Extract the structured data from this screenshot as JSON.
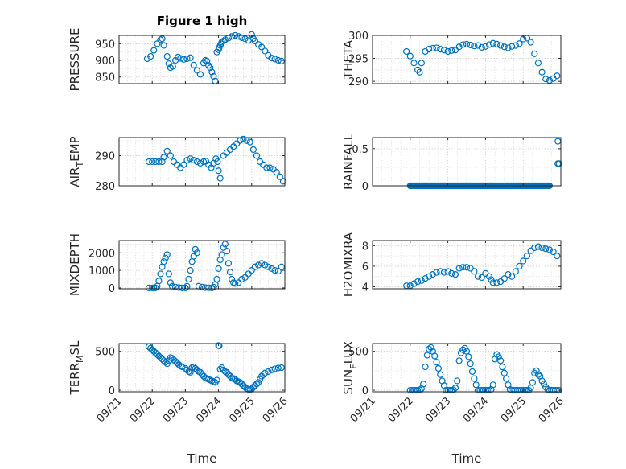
{
  "figure": {
    "background": "#ffffff",
    "marker_color": "#0072BD",
    "axis_color": "#262626",
    "grid_color": "#d0d0d0"
  },
  "chart_data": [
    {
      "type": "scatter",
      "title": "Figure 1 high",
      "ylabel": "PRESSURE",
      "xlabel": "",
      "grid": true,
      "xlim": [
        "09/21",
        "09/26"
      ],
      "ylim": [
        830,
        975
      ],
      "yticks": [
        850,
        900,
        950
      ],
      "xticks": [
        "09/21",
        "09/22",
        "09/23",
        "09/24",
        "09/25",
        "09/26"
      ],
      "show_xticklabels": false,
      "x": [
        1.85,
        1.95,
        2.05,
        2.15,
        2.25,
        2.3,
        2.35,
        2.45,
        2.5,
        2.55,
        2.62,
        2.7,
        2.78,
        2.85,
        2.95,
        3.05,
        3.15,
        3.25,
        3.35,
        3.45,
        3.55,
        3.6,
        3.65,
        3.7,
        3.75,
        3.8,
        3.85,
        3.9,
        3.95,
        4.0,
        4.02,
        4.05,
        4.08,
        4.1,
        4.15,
        4.2,
        4.3,
        4.4,
        4.5,
        4.6,
        4.7,
        4.8,
        4.9,
        5.0,
        5.05,
        5.1,
        5.2,
        5.3,
        5.4,
        5.5,
        5.6,
        5.7,
        5.8,
        5.9
      ],
      "y": [
        905,
        912,
        930,
        950,
        962,
        965,
        945,
        912,
        890,
        878,
        882,
        900,
        910,
        906,
        903,
        905,
        908,
        886,
        870,
        858,
        892,
        900,
        898,
        885,
        878,
        865,
        852,
        838,
        925,
        932,
        938,
        945,
        950,
        955,
        958,
        962,
        967,
        972,
        975,
        972,
        968,
        965,
        960,
        978,
        965,
        958,
        948,
        940,
        928,
        915,
        907,
        904,
        900,
        898
      ]
    },
    {
      "type": "scatter",
      "ylabel": "THETA",
      "xlabel": "",
      "grid": true,
      "xlim": [
        "09/21",
        "09/26"
      ],
      "ylim": [
        289.5,
        300
      ],
      "yticks": [
        290,
        295,
        300
      ],
      "xticks": [
        "09/21",
        "09/22",
        "09/23",
        "09/24",
        "09/25",
        "09/26"
      ],
      "show_xticklabels": false,
      "x": [
        1.9,
        2.0,
        2.1,
        2.2,
        2.25,
        2.3,
        2.4,
        2.5,
        2.6,
        2.7,
        2.8,
        2.9,
        3.0,
        3.1,
        3.2,
        3.3,
        3.4,
        3.5,
        3.6,
        3.7,
        3.8,
        3.9,
        4.0,
        4.1,
        4.2,
        4.3,
        4.4,
        4.5,
        4.6,
        4.7,
        4.8,
        4.9,
        5.0,
        5.1,
        5.2,
        5.3,
        5.4,
        5.5,
        5.6,
        5.7,
        5.8,
        5.9
      ],
      "y": [
        296.5,
        295.5,
        294,
        292.5,
        292,
        294,
        296.5,
        297,
        297.2,
        297.3,
        297,
        296.8,
        296.5,
        296.7,
        296.8,
        297.5,
        298,
        298.1,
        297.9,
        297.7,
        297.8,
        297.4,
        297.6,
        298,
        298.3,
        298.1,
        297.8,
        297.5,
        297.3,
        297.6,
        297.8,
        298.2,
        299.2,
        299.4,
        298.5,
        296,
        294,
        292,
        290.5,
        290.2,
        290.6,
        291.2
      ]
    },
    {
      "type": "scatter",
      "ylabel": "AIR_TEMP",
      "xlabel": "",
      "grid": true,
      "xlim": [
        "09/21",
        "09/26"
      ],
      "ylim": [
        280,
        296
      ],
      "yticks": [
        280,
        290
      ],
      "xticks": [
        "09/21",
        "09/22",
        "09/23",
        "09/24",
        "09/25",
        "09/26"
      ],
      "show_xticklabels": false,
      "x": [
        1.9,
        2.0,
        2.1,
        2.2,
        2.3,
        2.35,
        2.45,
        2.55,
        2.65,
        2.75,
        2.85,
        2.95,
        3.05,
        3.15,
        3.25,
        3.35,
        3.45,
        3.55,
        3.62,
        3.7,
        3.78,
        3.85,
        3.92,
        3.97,
        4.0,
        4.05,
        4.15,
        4.25,
        4.35,
        4.45,
        4.55,
        4.65,
        4.75,
        4.85,
        4.95,
        5.05,
        5.15,
        5.25,
        5.35,
        5.45,
        5.55,
        5.65,
        5.75,
        5.85,
        5.95
      ],
      "y": [
        288,
        288,
        288,
        288,
        288,
        289.5,
        291.5,
        290,
        288,
        287,
        286,
        287,
        288.5,
        289,
        288.5,
        288,
        287.5,
        288,
        288.2,
        287,
        286,
        287.5,
        289,
        288,
        285,
        282.5,
        290,
        291,
        292,
        293,
        294,
        295,
        295.5,
        295,
        294.5,
        292,
        290,
        288,
        287,
        286,
        286,
        285.5,
        284.5,
        283,
        281.5
      ]
    },
    {
      "type": "scatter",
      "ylabel": "RAINFALL",
      "xlabel": "",
      "grid": true,
      "xlim": [
        "09/21",
        "09/26"
      ],
      "ylim": [
        0,
        0.65
      ],
      "yticks": [
        0,
        0.5
      ],
      "xticks": [
        "09/21",
        "09/22",
        "09/23",
        "09/24",
        "09/25",
        "09/26"
      ],
      "show_xticklabels": false,
      "x_range_zero": [
        2.0,
        5.7
      ],
      "x": [
        5.92,
        5.92,
        5.95
      ],
      "y": [
        0.6,
        0.3,
        0.3
      ]
    },
    {
      "type": "scatter",
      "ylabel": "MIXDEPTH",
      "xlabel": "",
      "grid": true,
      "xlim": [
        "09/21",
        "09/26"
      ],
      "ylim": [
        -50,
        2700
      ],
      "yticks": [
        0,
        1000,
        2000
      ],
      "xticks": [
        "09/21",
        "09/22",
        "09/23",
        "09/24",
        "09/25",
        "09/26"
      ],
      "show_xticklabels": false,
      "x": [
        1.9,
        2.0,
        2.05,
        2.1,
        2.15,
        2.2,
        2.25,
        2.3,
        2.35,
        2.4,
        2.45,
        2.5,
        2.55,
        2.6,
        2.7,
        2.8,
        2.9,
        3.0,
        3.05,
        3.1,
        3.15,
        3.2,
        3.25,
        3.3,
        3.35,
        3.4,
        3.5,
        3.6,
        3.7,
        3.8,
        3.85,
        3.9,
        3.95,
        4.0,
        4.05,
        4.1,
        4.15,
        4.2,
        4.25,
        4.3,
        4.35,
        4.4,
        4.45,
        4.5,
        4.6,
        4.7,
        4.8,
        4.9,
        5.0,
        5.1,
        5.2,
        5.3,
        5.4,
        5.5,
        5.6,
        5.7,
        5.8,
        5.9
      ],
      "y": [
        0,
        0,
        0,
        0,
        100,
        400,
        800,
        1200,
        1500,
        1700,
        1900,
        800,
        300,
        100,
        50,
        20,
        0,
        0,
        100,
        500,
        1000,
        1500,
        1800,
        2200,
        2000,
        100,
        50,
        20,
        10,
        0,
        50,
        200,
        500,
        1100,
        1600,
        1900,
        2300,
        2500,
        2100,
        1400,
        900,
        500,
        300,
        250,
        300,
        500,
        600,
        800,
        1000,
        1200,
        1300,
        1400,
        1300,
        1200,
        1100,
        1000,
        950,
        1200
      ]
    },
    {
      "type": "scatter",
      "ylabel": "H2OMIXRA",
      "xlabel": "",
      "grid": true,
      "xlim": [
        "09/21",
        "09/26"
      ],
      "ylim": [
        3.8,
        8.5
      ],
      "yticks": [
        4,
        6,
        8
      ],
      "xticks": [
        "09/21",
        "09/22",
        "09/23",
        "09/24",
        "09/25",
        "09/26"
      ],
      "show_xticklabels": false,
      "x": [
        1.9,
        2.0,
        2.1,
        2.2,
        2.3,
        2.4,
        2.5,
        2.6,
        2.7,
        2.8,
        2.9,
        3.0,
        3.1,
        3.2,
        3.3,
        3.4,
        3.5,
        3.6,
        3.7,
        3.8,
        3.9,
        4.0,
        4.1,
        4.15,
        4.2,
        4.3,
        4.4,
        4.5,
        4.6,
        4.7,
        4.8,
        4.9,
        5.0,
        5.1,
        5.2,
        5.3,
        5.4,
        5.5,
        5.6,
        5.7,
        5.8,
        5.9
      ],
      "y": [
        4.1,
        4.1,
        4.3,
        4.5,
        4.6,
        4.8,
        5.0,
        5.2,
        5.4,
        5.5,
        5.4,
        5.5,
        5.3,
        5.2,
        5.8,
        5.9,
        5.9,
        5.8,
        5.5,
        5.0,
        4.9,
        5.3,
        5.0,
        4.7,
        4.4,
        4.4,
        4.5,
        4.8,
        5.2,
        5.0,
        5.5,
        6.0,
        6.5,
        7.0,
        7.5,
        7.8,
        7.9,
        7.8,
        7.7,
        7.6,
        7.4,
        7.0
      ]
    },
    {
      "type": "scatter",
      "ylabel": "TERR_MSL",
      "xlabel": "Time",
      "grid": true,
      "xlim": [
        "09/21",
        "09/26"
      ],
      "ylim": [
        -20,
        600
      ],
      "yticks": [
        0,
        500
      ],
      "xticks": [
        "09/21",
        "09/22",
        "09/23",
        "09/24",
        "09/25",
        "09/26"
      ],
      "show_xticklabels": true,
      "x": [
        1.9,
        1.95,
        2.0,
        2.05,
        2.1,
        2.15,
        2.2,
        2.25,
        2.3,
        2.35,
        2.4,
        2.45,
        2.5,
        2.55,
        2.6,
        2.65,
        2.7,
        2.75,
        2.8,
        2.85,
        2.9,
        3.0,
        3.05,
        3.1,
        3.15,
        3.2,
        3.25,
        3.3,
        3.35,
        3.4,
        3.45,
        3.5,
        3.55,
        3.6,
        3.65,
        3.7,
        3.75,
        3.8,
        3.85,
        3.9,
        3.95,
        4.0,
        4.02,
        4.05,
        4.1,
        4.15,
        4.2,
        4.25,
        4.3,
        4.35,
        4.4,
        4.45,
        4.5,
        4.55,
        4.6,
        4.65,
        4.7,
        4.75,
        4.8,
        4.85,
        4.9,
        4.95,
        5.0,
        5.05,
        5.1,
        5.15,
        5.2,
        5.25,
        5.3,
        5.35,
        5.4,
        5.5,
        5.6,
        5.7,
        5.8,
        5.9
      ],
      "y": [
        560,
        540,
        520,
        500,
        480,
        460,
        440,
        420,
        400,
        380,
        360,
        340,
        380,
        420,
        410,
        390,
        370,
        350,
        330,
        310,
        300,
        280,
        260,
        240,
        230,
        290,
        300,
        280,
        260,
        240,
        230,
        200,
        180,
        160,
        150,
        140,
        130,
        120,
        110,
        100,
        130,
        575,
        570,
        270,
        290,
        260,
        240,
        230,
        200,
        180,
        160,
        150,
        140,
        120,
        110,
        100,
        80,
        60,
        40,
        20,
        10,
        5,
        15,
        40,
        60,
        80,
        100,
        140,
        180,
        200,
        220,
        240,
        260,
        275,
        285,
        290
      ]
    },
    {
      "type": "scatter",
      "ylabel": "SUN_FLUX",
      "xlabel": "Time",
      "grid": true,
      "xlim": [
        "09/21",
        "09/26"
      ],
      "ylim": [
        -20,
        600
      ],
      "yticks": [
        0,
        500
      ],
      "xticks": [
        "09/21",
        "09/22",
        "09/23",
        "09/24",
        "09/25",
        "09/26"
      ],
      "show_xticklabels": true,
      "x": [
        2.0,
        2.05,
        2.1,
        2.15,
        2.2,
        2.25,
        2.3,
        2.35,
        2.4,
        2.45,
        2.5,
        2.55,
        2.6,
        2.65,
        2.7,
        2.75,
        2.8,
        2.85,
        2.9,
        2.95,
        3.0,
        3.05,
        3.1,
        3.15,
        3.2,
        3.25,
        3.3,
        3.35,
        3.4,
        3.45,
        3.5,
        3.55,
        3.6,
        3.65,
        3.7,
        3.75,
        3.8,
        3.85,
        3.9,
        3.95,
        4.0,
        4.05,
        4.1,
        4.15,
        4.2,
        4.25,
        4.3,
        4.35,
        4.4,
        4.45,
        4.5,
        4.55,
        4.6,
        4.65,
        4.7,
        4.75,
        4.8,
        4.85,
        4.9,
        4.95,
        5.0,
        5.05,
        5.1,
        5.15,
        5.2,
        5.25,
        5.3,
        5.35,
        5.4,
        5.45,
        5.5,
        5.55,
        5.6,
        5.65,
        5.7,
        5.75,
        5.8,
        5.85,
        5.9,
        5.95
      ],
      "y": [
        0,
        0,
        0,
        0,
        0,
        5,
        20,
        80,
        300,
        450,
        530,
        550,
        500,
        440,
        360,
        280,
        200,
        120,
        60,
        0,
        0,
        0,
        0,
        5,
        30,
        120,
        380,
        480,
        520,
        540,
        500,
        430,
        340,
        240,
        150,
        70,
        0,
        0,
        0,
        0,
        0,
        0,
        0,
        10,
        70,
        400,
        460,
        430,
        380,
        300,
        220,
        150,
        70,
        10,
        0,
        0,
        0,
        0,
        0,
        0,
        0,
        0,
        0,
        0,
        30,
        100,
        220,
        250,
        200,
        180,
        120,
        80,
        40,
        10,
        0,
        0,
        0,
        0,
        0,
        0
      ]
    }
  ]
}
